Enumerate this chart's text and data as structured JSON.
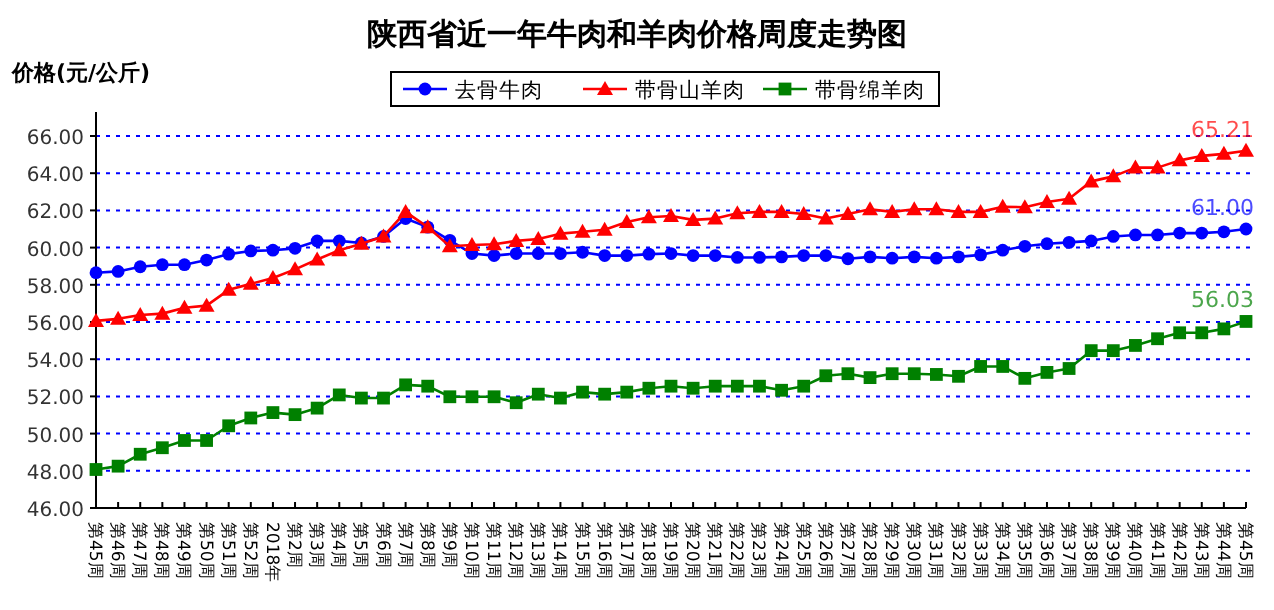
{
  "chart_data": {
    "type": "line",
    "title": "陕西省近一年牛肉和羊肉价格周度走势图",
    "ylabel": "价格(元/公斤)",
    "categories": [
      "第45周",
      "第46周",
      "第47周",
      "第48周",
      "第49周",
      "第50周",
      "第51周",
      "第52周",
      "2018年",
      "第2周",
      "第3周",
      "第4周",
      "第5周",
      "第6周",
      "第7周",
      "第8周",
      "第9周",
      "第10周",
      "第11周",
      "第12周",
      "第13周",
      "第14周",
      "第15周",
      "第16周",
      "第17周",
      "第18周",
      "第19周",
      "第20周",
      "第21周",
      "第22周",
      "第23周",
      "第24周",
      "第25周",
      "第26周",
      "第27周",
      "第28周",
      "第29周",
      "第30周",
      "第31周",
      "第32周",
      "第33周",
      "第34周",
      "第35周",
      "第36周",
      "第37周",
      "第38周",
      "第39周",
      "第40周",
      "第41周",
      "第42周",
      "第43周",
      "第44周",
      "第45周"
    ],
    "series": [
      {
        "name": "去骨牛肉",
        "color": "#0000ff",
        "marker": "circle",
        "values": [
          58.65,
          58.72,
          58.97,
          59.08,
          59.08,
          59.33,
          59.65,
          59.82,
          59.86,
          59.96,
          60.36,
          60.36,
          60.25,
          60.6,
          61.56,
          61.1,
          60.39,
          59.68,
          59.57,
          59.68,
          59.68,
          59.68,
          59.75,
          59.57,
          59.57,
          59.65,
          59.68,
          59.57,
          59.57,
          59.47,
          59.47,
          59.5,
          59.57,
          59.57,
          59.4,
          59.5,
          59.43,
          59.5,
          59.43,
          59.5,
          59.61,
          59.86,
          60.07,
          60.21,
          60.28,
          60.36,
          60.6,
          60.68,
          60.68,
          60.78,
          60.78,
          60.85,
          61.0
        ],
        "value_labels": [
          null,
          null,
          null,
          null,
          null,
          null,
          null,
          null,
          null,
          null,
          null,
          null,
          null,
          null,
          null,
          null,
          null,
          null,
          null,
          null,
          null,
          null,
          null,
          null,
          null,
          null,
          null,
          null,
          null,
          null,
          null,
          null,
          null,
          null,
          null,
          null,
          null,
          null,
          null,
          null,
          null,
          null,
          null,
          null,
          null,
          null,
          null,
          null,
          null,
          null,
          null,
          null,
          "61.00"
        ]
      },
      {
        "name": "带骨山羊肉",
        "color": "#ff0000",
        "marker": "triangle",
        "values": [
          56.06,
          56.17,
          56.38,
          56.45,
          56.77,
          56.88,
          57.73,
          58.05,
          58.37,
          58.83,
          59.36,
          59.86,
          60.21,
          60.6,
          61.92,
          61.1,
          60.07,
          60.14,
          60.18,
          60.36,
          60.46,
          60.75,
          60.85,
          60.96,
          61.38,
          61.63,
          61.7,
          61.49,
          61.56,
          61.85,
          61.92,
          61.92,
          61.81,
          61.56,
          61.81,
          62.06,
          61.92,
          62.06,
          62.06,
          61.92,
          61.92,
          62.2,
          62.17,
          62.45,
          62.63,
          63.56,
          63.83,
          64.3,
          64.3,
          64.69,
          64.93,
          65.04,
          65.21
        ],
        "value_labels": [
          null,
          null,
          null,
          null,
          null,
          null,
          null,
          null,
          null,
          null,
          null,
          null,
          null,
          null,
          null,
          null,
          null,
          null,
          null,
          null,
          null,
          null,
          null,
          null,
          null,
          null,
          null,
          null,
          null,
          null,
          null,
          null,
          null,
          null,
          null,
          null,
          null,
          null,
          null,
          null,
          null,
          null,
          null,
          null,
          null,
          null,
          null,
          null,
          null,
          null,
          null,
          null,
          "65.21"
        ]
      },
      {
        "name": "带骨绵羊肉",
        "color": "#008000",
        "marker": "square",
        "values": [
          48.07,
          48.25,
          48.89,
          49.24,
          49.63,
          49.63,
          50.42,
          50.84,
          51.13,
          51.02,
          51.37,
          52.08,
          51.91,
          51.91,
          52.62,
          52.55,
          51.98,
          51.98,
          51.98,
          51.66,
          52.12,
          51.91,
          52.23,
          52.12,
          52.23,
          52.44,
          52.55,
          52.44,
          52.55,
          52.55,
          52.55,
          52.33,
          52.55,
          53.11,
          53.22,
          53.01,
          53.22,
          53.22,
          53.18,
          53.08,
          53.61,
          53.61,
          52.97,
          53.29,
          53.5,
          54.46,
          54.46,
          54.74,
          55.1,
          55.42,
          55.42,
          55.63,
          56.03
        ],
        "value_labels": [
          null,
          null,
          null,
          null,
          null,
          null,
          null,
          null,
          null,
          null,
          null,
          null,
          null,
          null,
          null,
          null,
          null,
          null,
          null,
          null,
          null,
          null,
          null,
          null,
          null,
          null,
          null,
          null,
          null,
          null,
          null,
          null,
          null,
          null,
          null,
          null,
          null,
          null,
          null,
          null,
          null,
          null,
          null,
          null,
          null,
          null,
          null,
          null,
          null,
          null,
          null,
          null,
          "56.03"
        ]
      }
    ],
    "ylim": [
      46,
      66
    ],
    "yticks": [
      {
        "value": 46,
        "label": "46.00"
      },
      {
        "value": 48,
        "label": "48.00"
      },
      {
        "value": 50,
        "label": "50.00"
      },
      {
        "value": 52,
        "label": "52.00"
      },
      {
        "value": 54,
        "label": "54.00"
      },
      {
        "value": 56,
        "label": "56.00"
      },
      {
        "value": 58,
        "label": "58.00"
      },
      {
        "value": 60,
        "label": "60.00"
      },
      {
        "value": 62,
        "label": "62.00"
      },
      {
        "value": 64,
        "label": "64.00"
      },
      {
        "value": 66,
        "label": "66.00"
      }
    ],
    "grid": "y",
    "legend": "top",
    "line_style": "solid"
  }
}
